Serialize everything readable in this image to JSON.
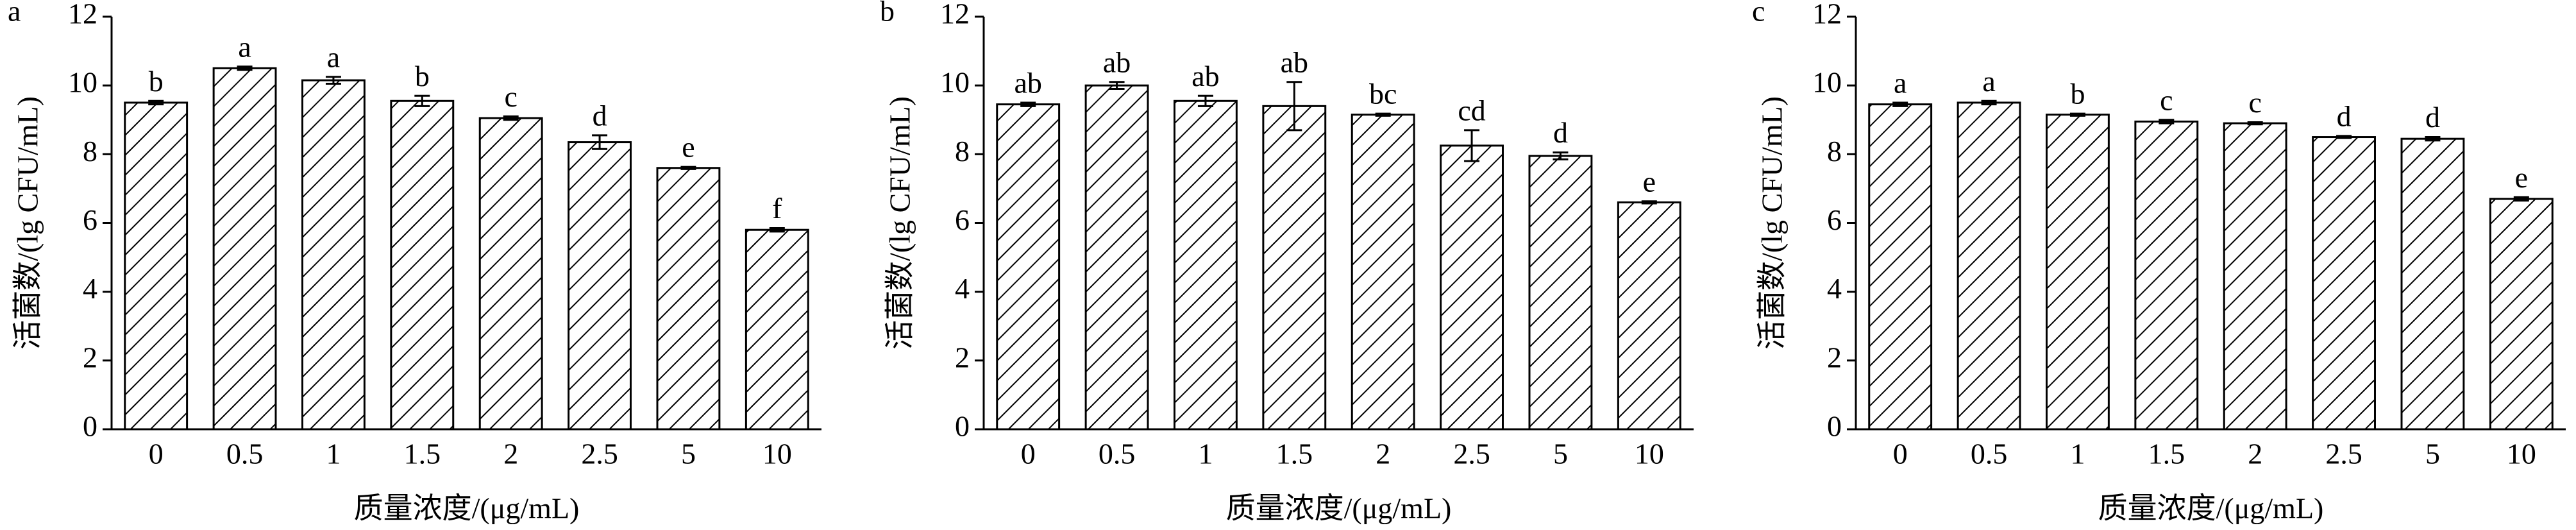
{
  "chart_data": [
    {
      "type": "bar",
      "label": "a",
      "ylabel": "活菌数/(lg CFU/mL)",
      "xlabel": "质量浓度/(μg/mL)",
      "categories": [
        "0",
        "0.5",
        "1",
        "1.5",
        "2",
        "2.5",
        "5",
        "10"
      ],
      "values": [
        9.5,
        10.5,
        10.15,
        9.55,
        9.05,
        8.35,
        7.6,
        5.8
      ],
      "errors": [
        0.05,
        0.05,
        0.1,
        0.15,
        0.05,
        0.2,
        0.03,
        0.05
      ],
      "annotations": [
        "b",
        "a",
        "a",
        "b",
        "c",
        "d",
        "e",
        "f"
      ],
      "ylim": [
        0,
        12
      ],
      "yticks": [
        0,
        2,
        4,
        6,
        8,
        10,
        12
      ],
      "color": "#000000"
    },
    {
      "type": "bar",
      "label": "b",
      "ylabel": "活菌数/(lg CFU/mL)",
      "xlabel": "质量浓度/(μg/mL)",
      "categories": [
        "0",
        "0.5",
        "1",
        "1.5",
        "2",
        "2.5",
        "5",
        "10"
      ],
      "values": [
        9.45,
        10.0,
        9.55,
        9.4,
        9.15,
        8.25,
        7.95,
        6.6
      ],
      "errors": [
        0.05,
        0.1,
        0.15,
        0.7,
        0.03,
        0.45,
        0.1,
        0.03
      ],
      "annotations": [
        "ab",
        "ab",
        "ab",
        "ab",
        "bc",
        "cd",
        "d",
        "e"
      ],
      "ylim": [
        0,
        12
      ],
      "yticks": [
        0,
        2,
        4,
        6,
        8,
        10,
        12
      ],
      "color": "#000000"
    },
    {
      "type": "bar",
      "label": "c",
      "ylabel": "活菌数/(lg CFU/mL)",
      "xlabel": "质量浓度/(μg/mL)",
      "categories": [
        "0",
        "0.5",
        "1",
        "1.5",
        "2",
        "2.5",
        "5",
        "10"
      ],
      "values": [
        9.45,
        9.5,
        9.15,
        8.95,
        8.9,
        8.5,
        8.45,
        6.7
      ],
      "errors": [
        0.05,
        0.05,
        0.03,
        0.05,
        0.03,
        0.03,
        0.05,
        0.05
      ],
      "annotations": [
        "a",
        "a",
        "b",
        "c",
        "c",
        "d",
        "d",
        "e"
      ],
      "ylim": [
        0,
        12
      ],
      "yticks": [
        0,
        2,
        4,
        6,
        8,
        10,
        12
      ],
      "color": "#000000"
    }
  ]
}
